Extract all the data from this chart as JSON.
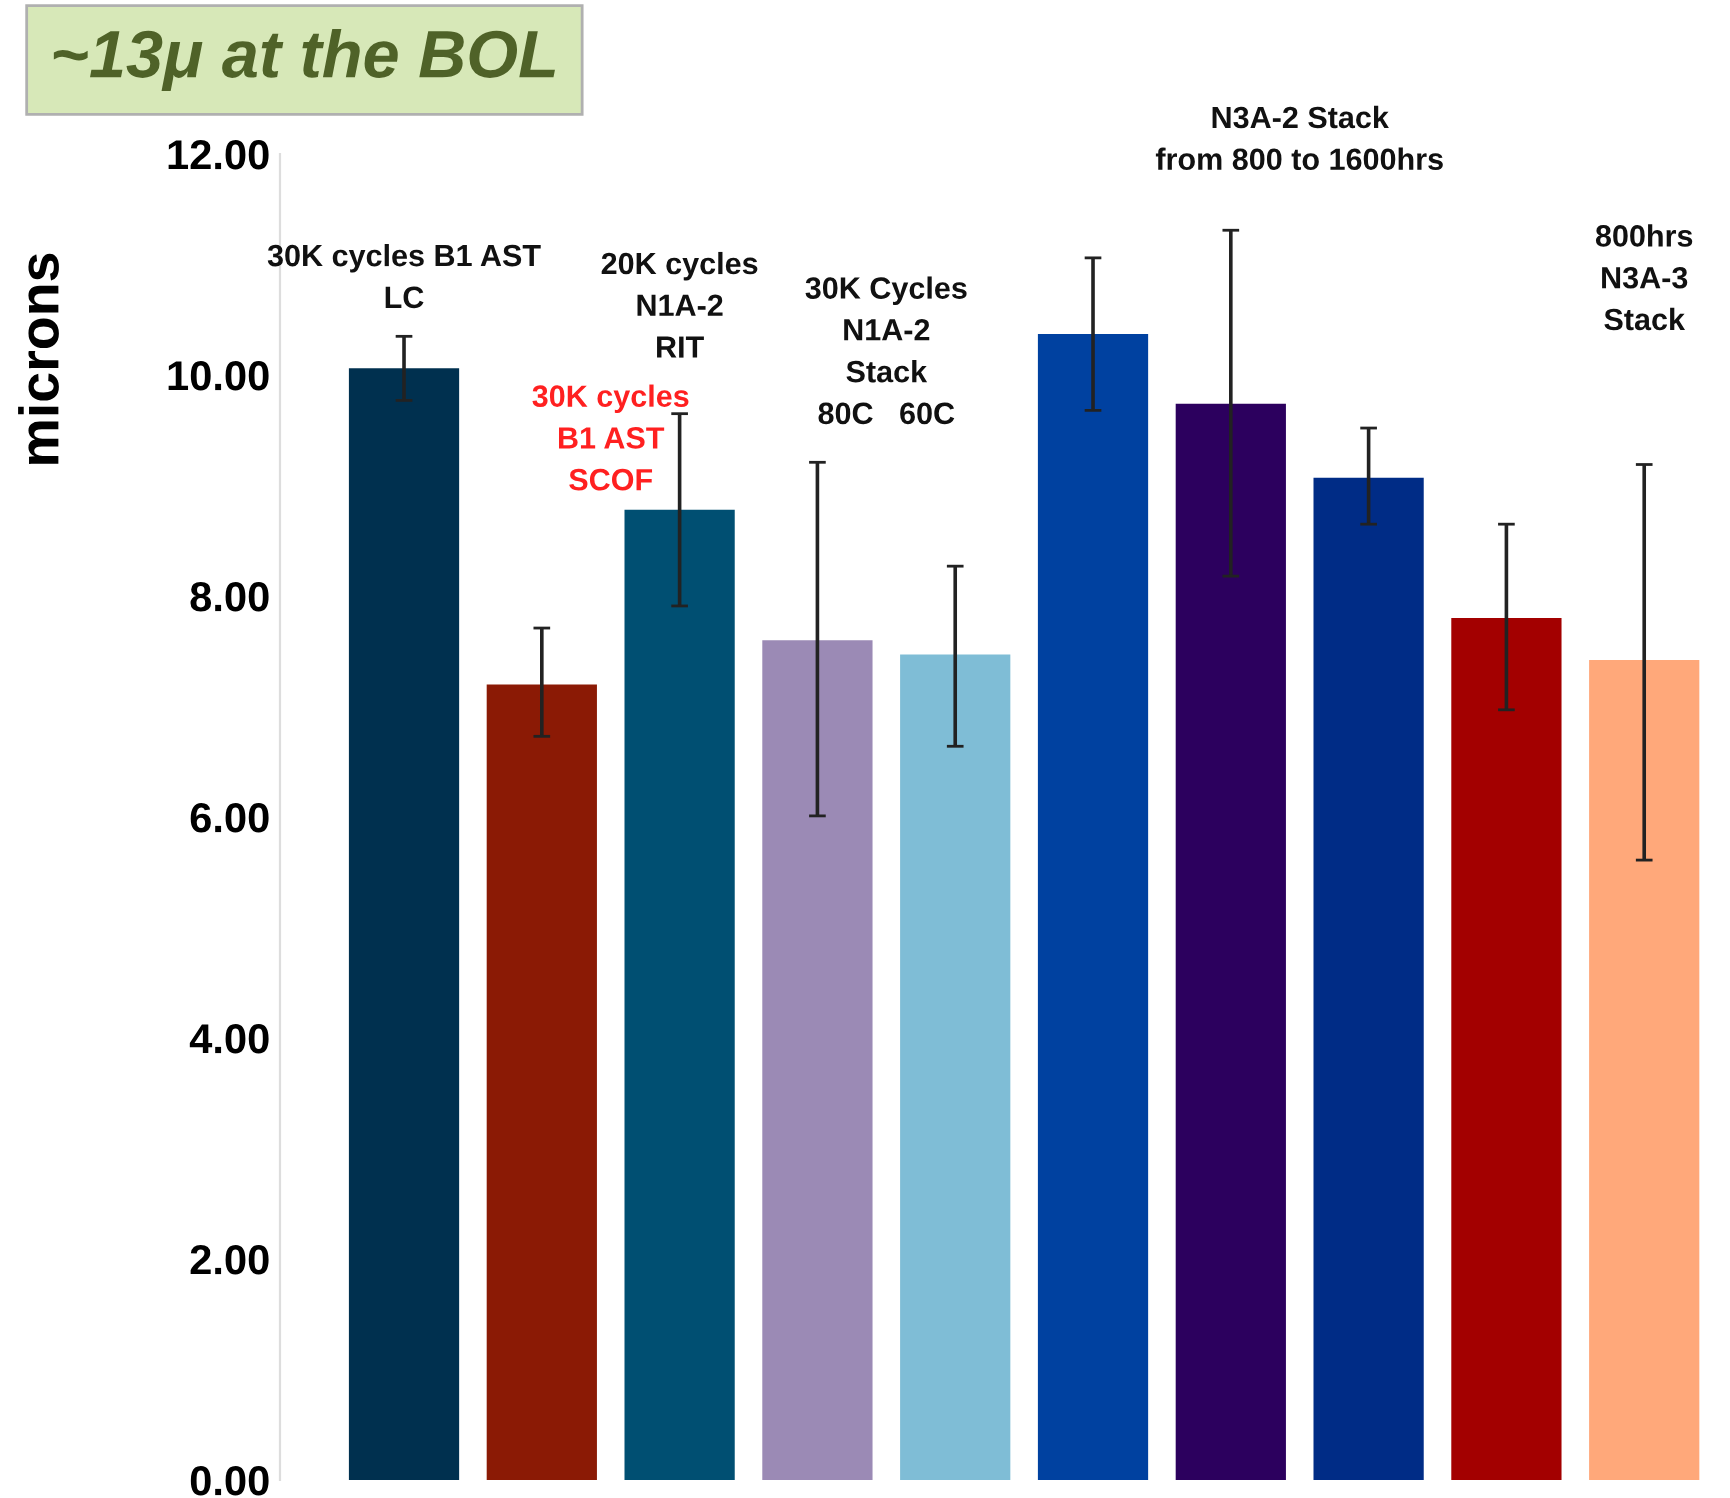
{
  "chart_data": {
    "type": "bar",
    "ylabel": "microns",
    "categories": [
      null,
      null,
      null,
      null,
      null,
      null,
      null,
      null,
      null,
      null
    ],
    "values": [
      10.06,
      7.2,
      8.78,
      7.6,
      7.47,
      10.37,
      9.74,
      9.07,
      7.8,
      7.42
    ],
    "colors": [
      "#00304f",
      "#8b1a05",
      "#004f72",
      "#9b8ab5",
      "#7fbdd6",
      "#0041a0",
      "#2c005e",
      "#002c86",
      "#a30000",
      "#ffa87a"
    ],
    "errors": [
      [
        9.77,
        10.35
      ],
      [
        6.73,
        7.71
      ],
      [
        7.91,
        9.65
      ],
      [
        6.01,
        9.21
      ],
      [
        6.64,
        8.27
      ],
      [
        9.68,
        11.06
      ],
      [
        8.18,
        11.31
      ],
      [
        8.65,
        9.52
      ],
      [
        6.97,
        8.65
      ],
      [
        5.61,
        9.19
      ]
    ],
    "ylim": [
      0,
      12
    ],
    "yticks": [
      {
        "value": 0,
        "label": "0.00"
      },
      {
        "value": 2,
        "label": "2.00"
      },
      {
        "value": 4,
        "label": "4.00"
      },
      {
        "value": 6,
        "label": "6.00"
      },
      {
        "value": 8,
        "label": "8.00"
      },
      {
        "value": 10,
        "label": "10.00"
      },
      {
        "value": 12,
        "label": "12.00"
      }
    ],
    "tick_labels": "y",
    "grid": false,
    "legend": false,
    "annotations": [
      "~13μ at the BOL",
      "30K cycles B1 AST\nLC",
      "30K cycles\nB1 AST\nSCOF",
      "20K cycles\nN1A-2\nRIT",
      "30K Cycles\nN1A-2\nStack\n80C   60C",
      "N3A-2 Stack\nfrom 800 to 1600hrs",
      "800hrs\nN3A-3\nStack"
    ]
  }
}
